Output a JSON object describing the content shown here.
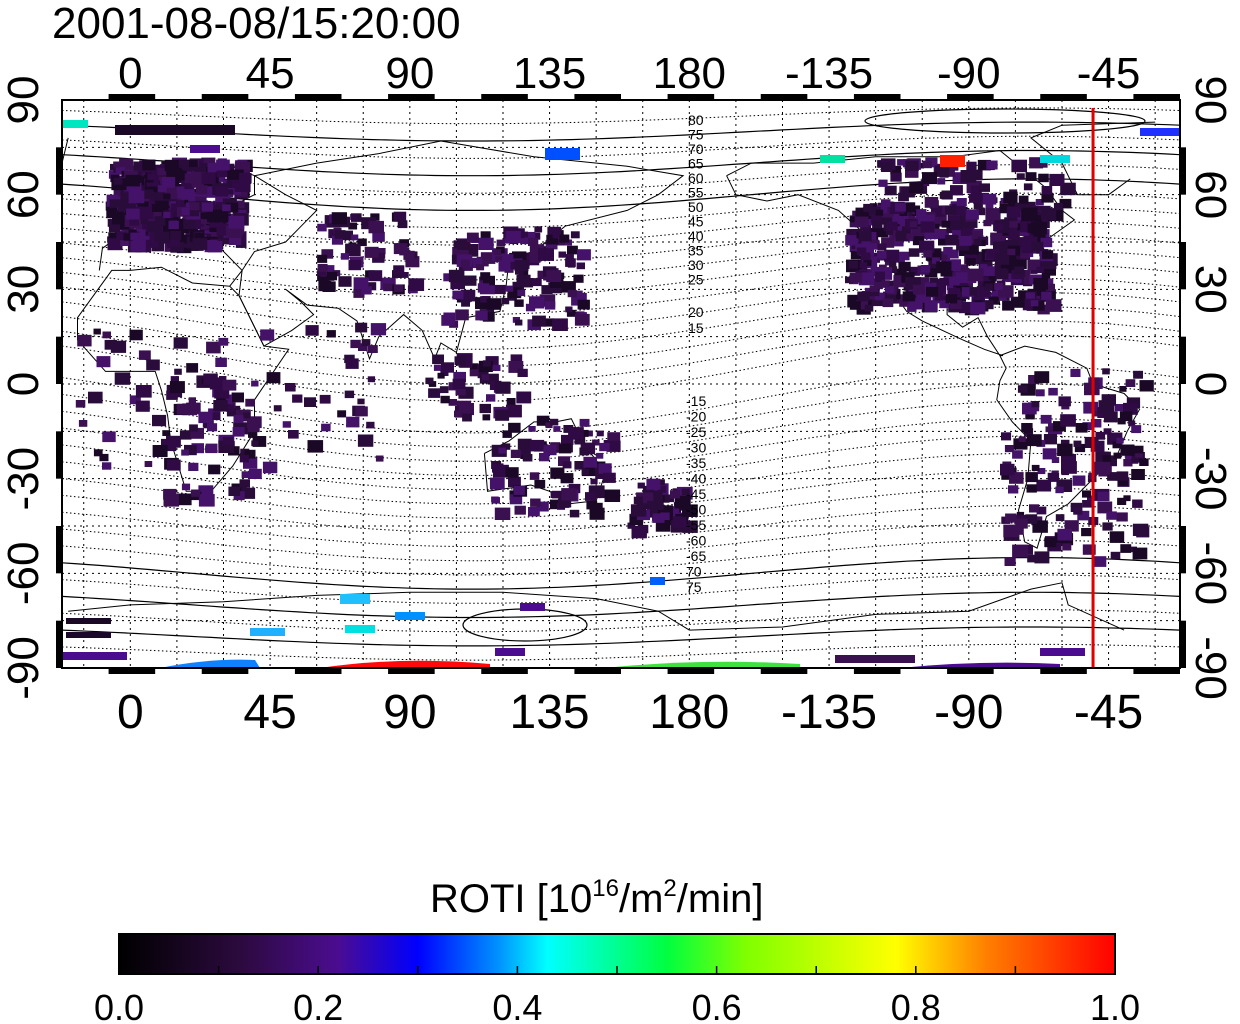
{
  "title": "2001-08-08/15:20:00",
  "x_ticks": [
    "0",
    "45",
    "90",
    "135",
    "180",
    "-135",
    "-90",
    "-45"
  ],
  "y_ticks_left": [
    "90",
    "60",
    "30",
    "0",
    "-30",
    "-60",
    "-90"
  ],
  "y_ticks_right": [
    "90",
    "60",
    "30",
    "0",
    "-30",
    "-60",
    "-90"
  ],
  "contour_labels_north": [
    "80",
    "75",
    "70",
    "65",
    "60",
    "55",
    "50",
    "45",
    "40",
    "35",
    "30",
    "25",
    "20",
    "15"
  ],
  "contour_labels_south": [
    "-15",
    "-20",
    "-25",
    "-30",
    "-35",
    "-40",
    "-45",
    "-50",
    "-55",
    "-60",
    "-65",
    "70",
    "75"
  ],
  "colorbar": {
    "label_main": "ROTI  [10",
    "label_sup1": "16",
    "label_mid": "/m",
    "label_sup2": "2",
    "label_end": "/min]",
    "ticks": [
      "0.0",
      "0.2",
      "0.4",
      "0.6",
      "0.8",
      "1.0"
    ],
    "range": [
      0.0,
      1.0
    ],
    "colors": [
      "#000000",
      "#3a0a5a",
      "#4b0ca8",
      "#0000ff",
      "#0080ff",
      "#00ffff",
      "#00ff00",
      "#ffff00",
      "#ff8000",
      "#ff0000"
    ]
  },
  "map": {
    "projection": "equirectangular",
    "lon_range": [
      -22,
      338
    ],
    "lat_range": [
      -90,
      90
    ],
    "terminator_longitude": -50,
    "terminator_color": "#e00000",
    "grid": "dotted"
  }
}
